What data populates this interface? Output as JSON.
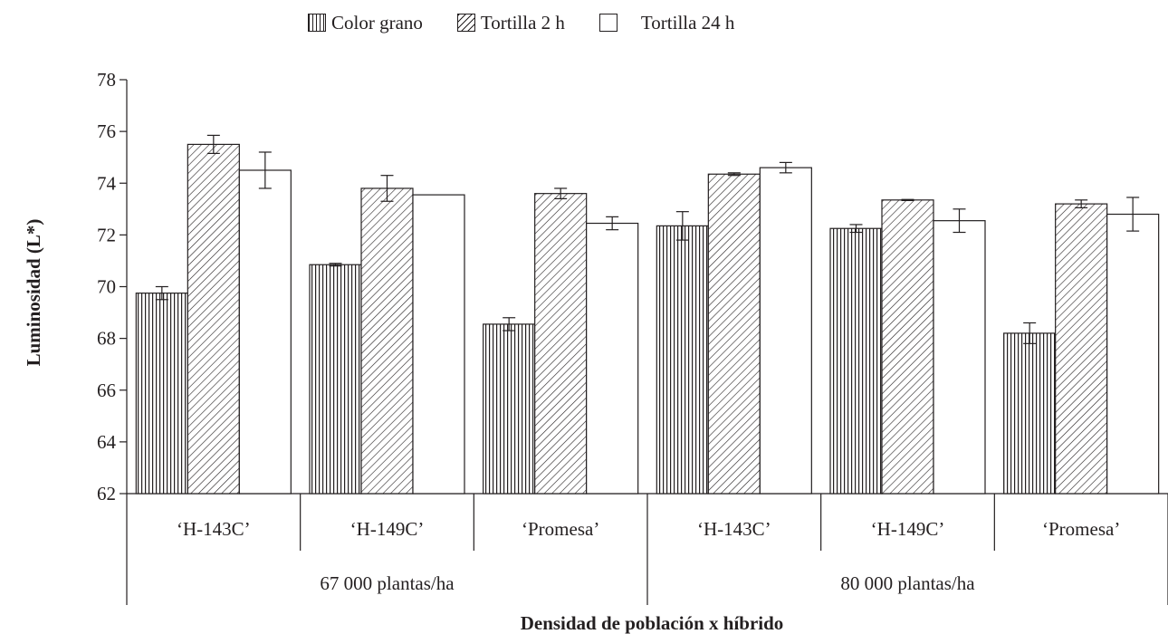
{
  "chart_data": {
    "type": "bar",
    "xlabel": "Densidad de población x híbrido",
    "ylabel": "Luminosidad (L*)",
    "ylim": [
      62,
      78
    ],
    "yticks": [
      62,
      64,
      66,
      68,
      70,
      72,
      74,
      76,
      78
    ],
    "groups": [
      "67 000 plantas/ha",
      "80 000 plantas/ha"
    ],
    "categories": [
      "‘H-143C’",
      "‘H-149C’",
      "‘Promesa’",
      "‘H-143C’",
      "‘H-149C’",
      "‘Promesa’"
    ],
    "series": [
      {
        "name": "Color grano",
        "pattern": "vertical",
        "values": [
          69.75,
          70.85,
          68.55,
          72.35,
          72.25,
          68.2
        ],
        "errors": [
          0.25,
          0.05,
          0.25,
          0.55,
          0.15,
          0.4
        ]
      },
      {
        "name": "Tortilla 2 h",
        "pattern": "diagonal",
        "values": [
          75.5,
          73.8,
          73.6,
          74.35,
          73.35,
          73.2
        ],
        "errors": [
          0.35,
          0.5,
          0.2,
          0.05,
          0.02,
          0.15
        ]
      },
      {
        "name": "Tortilla 24 h",
        "pattern": "plain",
        "values": [
          74.5,
          73.55,
          72.45,
          74.6,
          72.55,
          72.8
        ],
        "errors": [
          0.7,
          0.0,
          0.25,
          0.2,
          0.45,
          0.65
        ]
      }
    ],
    "legend_position": "top",
    "grid": false,
    "colors": {
      "ink": "#231f20",
      "fill": "#ffffff"
    }
  }
}
